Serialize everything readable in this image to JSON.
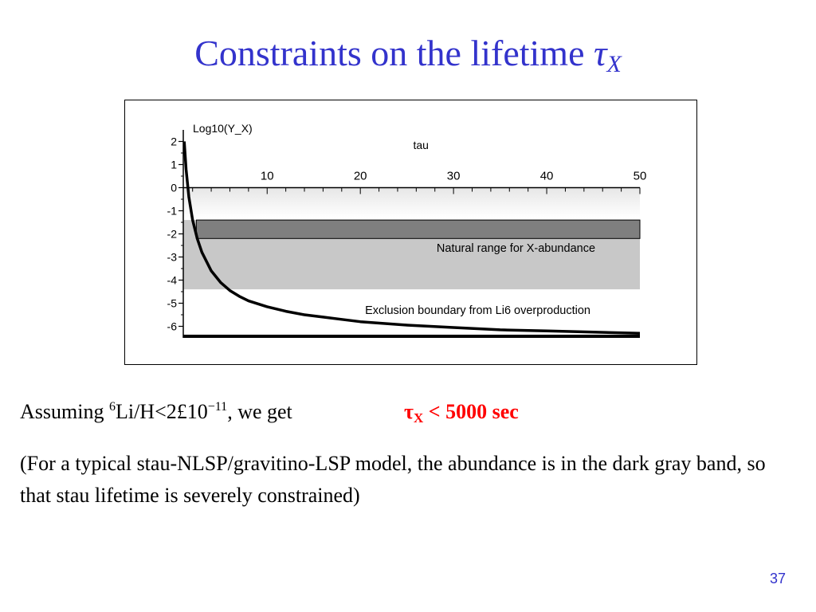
{
  "slide": {
    "title_text": "Constraints on the lifetime ",
    "title_symbol": "τ",
    "title_subscript": "X",
    "line1_prefix": "Assuming ",
    "line1_sup1": "6",
    "line1_mid": "Li/H<2£10",
    "line1_sup2": "−11",
    "line1_suffix": ", we get",
    "result_symbol": "τ",
    "result_subscript": "X",
    "result_text": " < 5000 sec",
    "paragraph": "(For a typical stau-NLSP/gravitino-LSP model, the abundance is in the dark gray band, so that stau lifetime is severely constrained)",
    "page_number": "37"
  },
  "colors": {
    "title": "#3333cc",
    "result": "#ff0000",
    "light_band": "#c8c8c8",
    "dark_band": "#7f7f7f"
  },
  "chart_data": {
    "type": "line",
    "xlabel": "tau",
    "ylabel": "Log10(Y_X)",
    "xlim": [
      1,
      50
    ],
    "ylim": [
      -6.5,
      2.5
    ],
    "x_ticks": [
      10,
      20,
      30,
      40,
      50
    ],
    "y_ticks": [
      2,
      1,
      0,
      -1,
      -2,
      -3,
      -4,
      -5,
      -6
    ],
    "x_axis_position": "top",
    "grid": false,
    "bands": [
      {
        "label": "Natural range for X-abundance",
        "ymin": -4.4,
        "ymax": -1.4,
        "x": [
          1,
          50
        ],
        "color": "light"
      },
      {
        "label": "",
        "ymin": -2.2,
        "ymax": -1.4,
        "x": [
          2.4,
          50
        ],
        "color": "dark"
      }
    ],
    "annotations": [
      {
        "text": "Natural range for X-abundance",
        "x": 36.7,
        "y": -2.6
      },
      {
        "text": "Exclusion boundary from Li6 overproduction",
        "x": 32.6,
        "y": -5.3
      }
    ],
    "series": [
      {
        "name": "Exclusion boundary from Li6 overproduction",
        "x": [
          1.1,
          1.3,
          1.6,
          2.0,
          2.5,
          3.0,
          4.0,
          5,
          6,
          7,
          8,
          10,
          12,
          14,
          16,
          18,
          20,
          25,
          30,
          35,
          40,
          45,
          50
        ],
        "y": [
          2.0,
          0.8,
          -0.4,
          -1.4,
          -2.2,
          -2.8,
          -3.6,
          -4.1,
          -4.45,
          -4.7,
          -4.9,
          -5.15,
          -5.35,
          -5.5,
          -5.6,
          -5.7,
          -5.8,
          -5.95,
          -6.05,
          -6.15,
          -6.2,
          -6.25,
          -6.3
        ]
      }
    ]
  }
}
